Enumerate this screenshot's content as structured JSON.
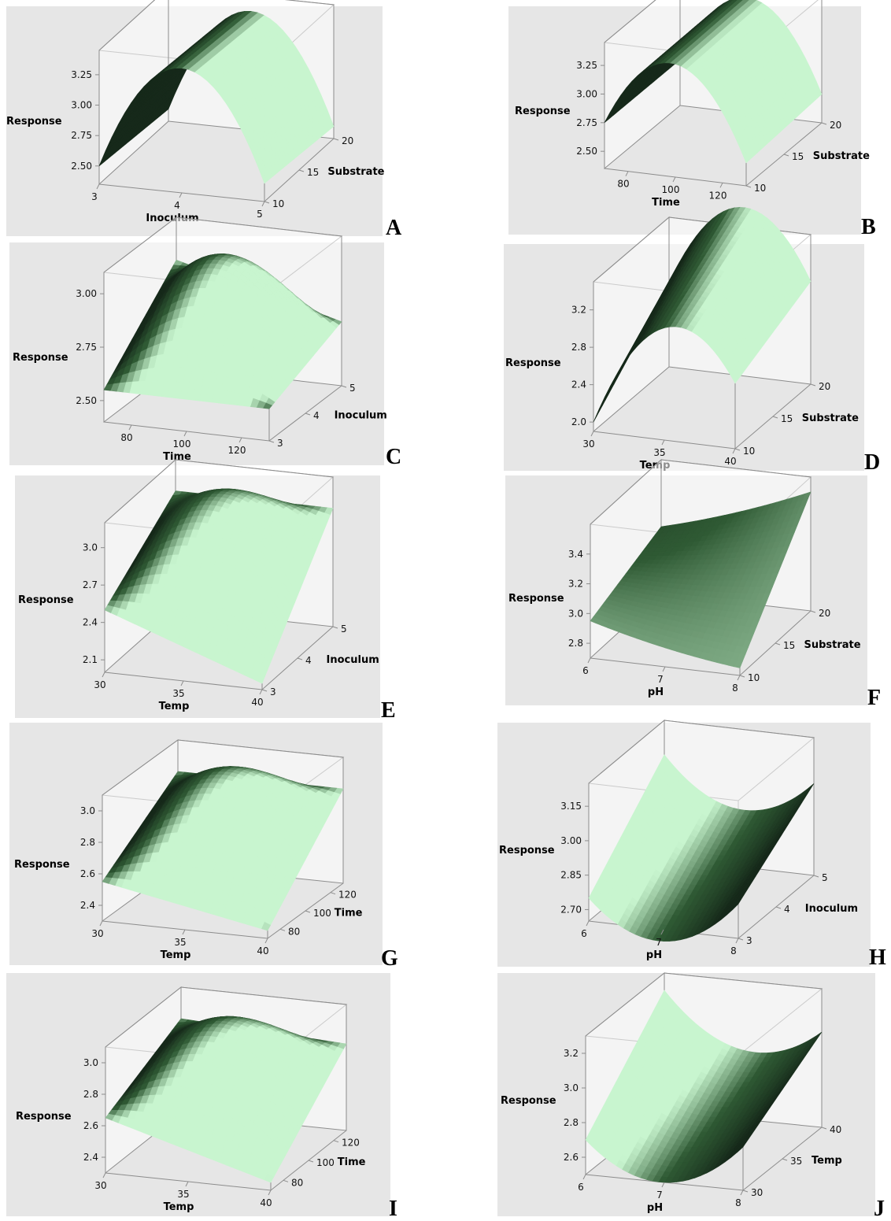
{
  "figure": {
    "colors": {
      "panel_bg": "#e6e6e6",
      "surface_dark": "#16291a",
      "surface_mid": "#2f5a34",
      "surface_light": "#c8f5cf",
      "frame": "#8c8c8c"
    }
  },
  "chart_data": [
    {
      "id": "A",
      "panel_label": "A",
      "type": "surface",
      "zlabel": "Response",
      "xlabel": "Inoculum",
      "ylabel": "Substrate",
      "z_ticks": [
        "3.25",
        "3.00",
        "2.75",
        "2.50"
      ],
      "x_ticks": [
        "3",
        "4",
        "5"
      ],
      "y_ticks": [
        "10",
        "15",
        "20"
      ],
      "zlim": [
        2.35,
        3.45
      ],
      "xlim": [
        3,
        5
      ],
      "ylim": [
        10,
        20
      ],
      "surface": {
        "shape": "ridge-along-substrate",
        "corner_values": [
          2.5,
          2.5,
          2.45,
          2.45
        ],
        "center": 3.35
      }
    },
    {
      "id": "B",
      "panel_label": "B",
      "type": "surface",
      "zlabel": "Response",
      "xlabel": "Time",
      "ylabel": "Substrate",
      "z_ticks": [
        "3.25",
        "3.00",
        "2.75",
        "2.50"
      ],
      "x_ticks": [
        "80",
        "100",
        "120"
      ],
      "y_ticks": [
        "10",
        "15",
        "20"
      ],
      "zlim": [
        2.35,
        3.45
      ],
      "xlim": [
        70,
        130
      ],
      "ylim": [
        10,
        20
      ],
      "surface": {
        "shape": "ridge-along-substrate",
        "corner_values": [
          2.75,
          2.55,
          2.75,
          2.6
        ],
        "center": 3.35
      }
    },
    {
      "id": "C",
      "panel_label": "C",
      "type": "surface",
      "zlabel": "Response",
      "xlabel": "Time",
      "ylabel": "Inoculum",
      "z_ticks": [
        "3.00",
        "2.75",
        "2.50"
      ],
      "x_ticks": [
        "80",
        "100",
        "120"
      ],
      "y_ticks": [
        "3",
        "4",
        "5"
      ],
      "zlim": [
        2.4,
        3.1
      ],
      "xlim": [
        70,
        130
      ],
      "ylim": [
        3,
        5
      ],
      "surface": {
        "shape": "dome",
        "corner_values": [
          2.55,
          2.55,
          2.9,
          2.7
        ],
        "center": 3.05
      }
    },
    {
      "id": "D",
      "panel_label": "D",
      "type": "surface",
      "zlabel": "Response",
      "xlabel": "Temp",
      "ylabel": "Substrate",
      "z_ticks": [
        "3.2",
        "2.8",
        "2.4",
        "2.0"
      ],
      "x_ticks": [
        "30",
        "35",
        "40"
      ],
      "y_ticks": [
        "10",
        "15",
        "20"
      ],
      "zlim": [
        1.9,
        3.5
      ],
      "xlim": [
        30,
        40
      ],
      "ylim": [
        10,
        20
      ],
      "surface": {
        "shape": "saddle-ridge",
        "corner_values": [
          2.0,
          2.6,
          2.8,
          3.0
        ],
        "center": 3.4
      }
    },
    {
      "id": "E",
      "panel_label": "E",
      "type": "surface",
      "zlabel": "Response",
      "xlabel": "Temp",
      "ylabel": "Inoculum",
      "z_ticks": [
        "3.0",
        "2.7",
        "2.4",
        "2.1"
      ],
      "x_ticks": [
        "30",
        "35",
        "40"
      ],
      "y_ticks": [
        "3",
        "4",
        "5"
      ],
      "zlim": [
        2.0,
        3.2
      ],
      "xlim": [
        30,
        40
      ],
      "ylim": [
        3,
        5
      ],
      "surface": {
        "shape": "dome",
        "corner_values": [
          2.5,
          2.05,
          2.95,
          2.95
        ],
        "center": 3.1
      }
    },
    {
      "id": "F",
      "panel_label": "F",
      "type": "surface",
      "zlabel": "Response",
      "xlabel": "pH",
      "ylabel": "Substrate",
      "z_ticks": [
        "3.4",
        "3.2",
        "3.0",
        "2.8"
      ],
      "x_ticks": [
        "6",
        "7",
        "8"
      ],
      "y_ticks": [
        "10",
        "15",
        "20"
      ],
      "zlim": [
        2.7,
        3.6
      ],
      "xlim": [
        6,
        8
      ],
      "ylim": [
        10,
        20
      ],
      "surface": {
        "shape": "tilted-plane",
        "corner_values": [
          2.95,
          2.75,
          3.15,
          3.5
        ],
        "center": 3.05
      }
    },
    {
      "id": "G",
      "panel_label": "G",
      "type": "surface",
      "zlabel": "Response",
      "xlabel": "Temp",
      "ylabel": "Time",
      "z_ticks": [
        "3.0",
        "2.8",
        "2.6",
        "2.4"
      ],
      "x_ticks": [
        "30",
        "35",
        "40"
      ],
      "y_ticks": [
        "80",
        "100",
        "120"
      ],
      "zlim": [
        2.3,
        3.1
      ],
      "xlim": [
        30,
        40
      ],
      "ylim": [
        70,
        130
      ],
      "surface": {
        "shape": "dome",
        "corner_values": [
          2.55,
          2.35,
          2.9,
          2.9
        ],
        "center": 3.05
      }
    },
    {
      "id": "H",
      "panel_label": "H",
      "type": "surface",
      "zlabel": "Response",
      "xlabel": "pH",
      "ylabel": "Inoculum",
      "z_ticks": [
        "3.15",
        "3.00",
        "2.85",
        "2.70"
      ],
      "x_ticks": [
        "6",
        "7",
        "8"
      ],
      "y_ticks": [
        "3",
        "4",
        "5"
      ],
      "zlim": [
        2.65,
        3.25
      ],
      "xlim": [
        6,
        8
      ],
      "ylim": [
        3,
        5
      ],
      "surface": {
        "shape": "valley-along-inoculum",
        "corner_values": [
          2.75,
          2.8,
          3.1,
          3.05
        ],
        "center": 2.75
      }
    },
    {
      "id": "I",
      "panel_label": "I",
      "type": "surface",
      "zlabel": "Response",
      "xlabel": "Temp",
      "ylabel": "Time",
      "z_ticks": [
        "3.0",
        "2.8",
        "2.6",
        "2.4"
      ],
      "x_ticks": [
        "30",
        "35",
        "40"
      ],
      "y_ticks": [
        "80",
        "100",
        "120"
      ],
      "zlim": [
        2.3,
        3.1
      ],
      "xlim": [
        30,
        40
      ],
      "ylim": [
        70,
        130
      ],
      "surface": {
        "shape": "dome",
        "corner_values": [
          2.65,
          2.35,
          2.9,
          2.85
        ],
        "center": 3.05
      }
    },
    {
      "id": "J",
      "panel_label": "J",
      "type": "surface",
      "zlabel": "Response",
      "xlabel": "pH",
      "ylabel": "Temp",
      "z_ticks": [
        "3.2",
        "3.0",
        "2.8",
        "2.6"
      ],
      "x_ticks": [
        "6",
        "7",
        "8"
      ],
      "y_ticks": [
        "30",
        "35",
        "40"
      ],
      "zlim": [
        2.5,
        3.3
      ],
      "xlim": [
        6,
        8
      ],
      "ylim": [
        30,
        40
      ],
      "surface": {
        "shape": "valley-along-temp",
        "corner_values": [
          2.7,
          2.75,
          3.2,
          3.05
        ],
        "center": 2.7
      }
    }
  ]
}
